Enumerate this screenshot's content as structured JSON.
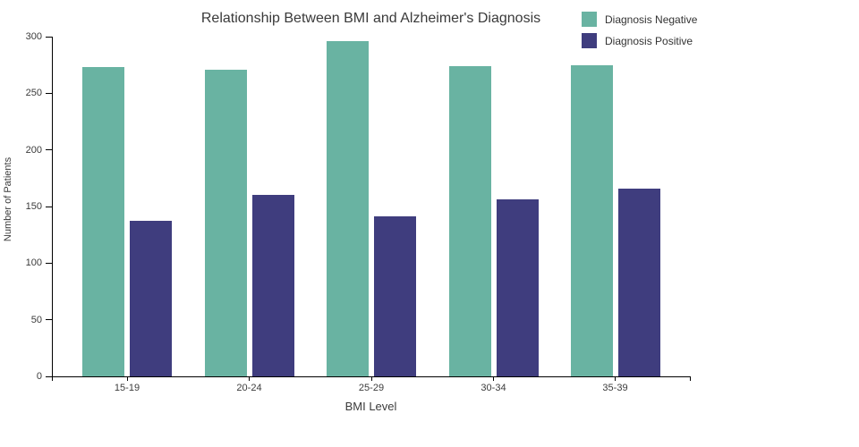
{
  "chart_data": {
    "type": "bar",
    "title": "Relationship Between BMI and Alzheimer's Diagnosis",
    "xlabel": "BMI Level",
    "ylabel": "Number of Patients",
    "categories": [
      "15-19",
      "20-24",
      "25-29",
      "30-34",
      "35-39"
    ],
    "series": [
      {
        "name": "Diagnosis Negative",
        "color": "#69b3a2",
        "values": [
          273,
          271,
          296,
          274,
          275
        ]
      },
      {
        "name": "Diagnosis Positive",
        "color": "#3f3d7e",
        "values": [
          137,
          160,
          141,
          156,
          166
        ]
      }
    ],
    "ylim": [
      0,
      300
    ],
    "yticks": [
      0,
      50,
      100,
      150,
      200,
      250,
      300
    ],
    "grid": false,
    "legend_position": "top-right",
    "axis_color": "#000000",
    "text_color": "#3b3b3b",
    "background_color": "#ffffff"
  }
}
